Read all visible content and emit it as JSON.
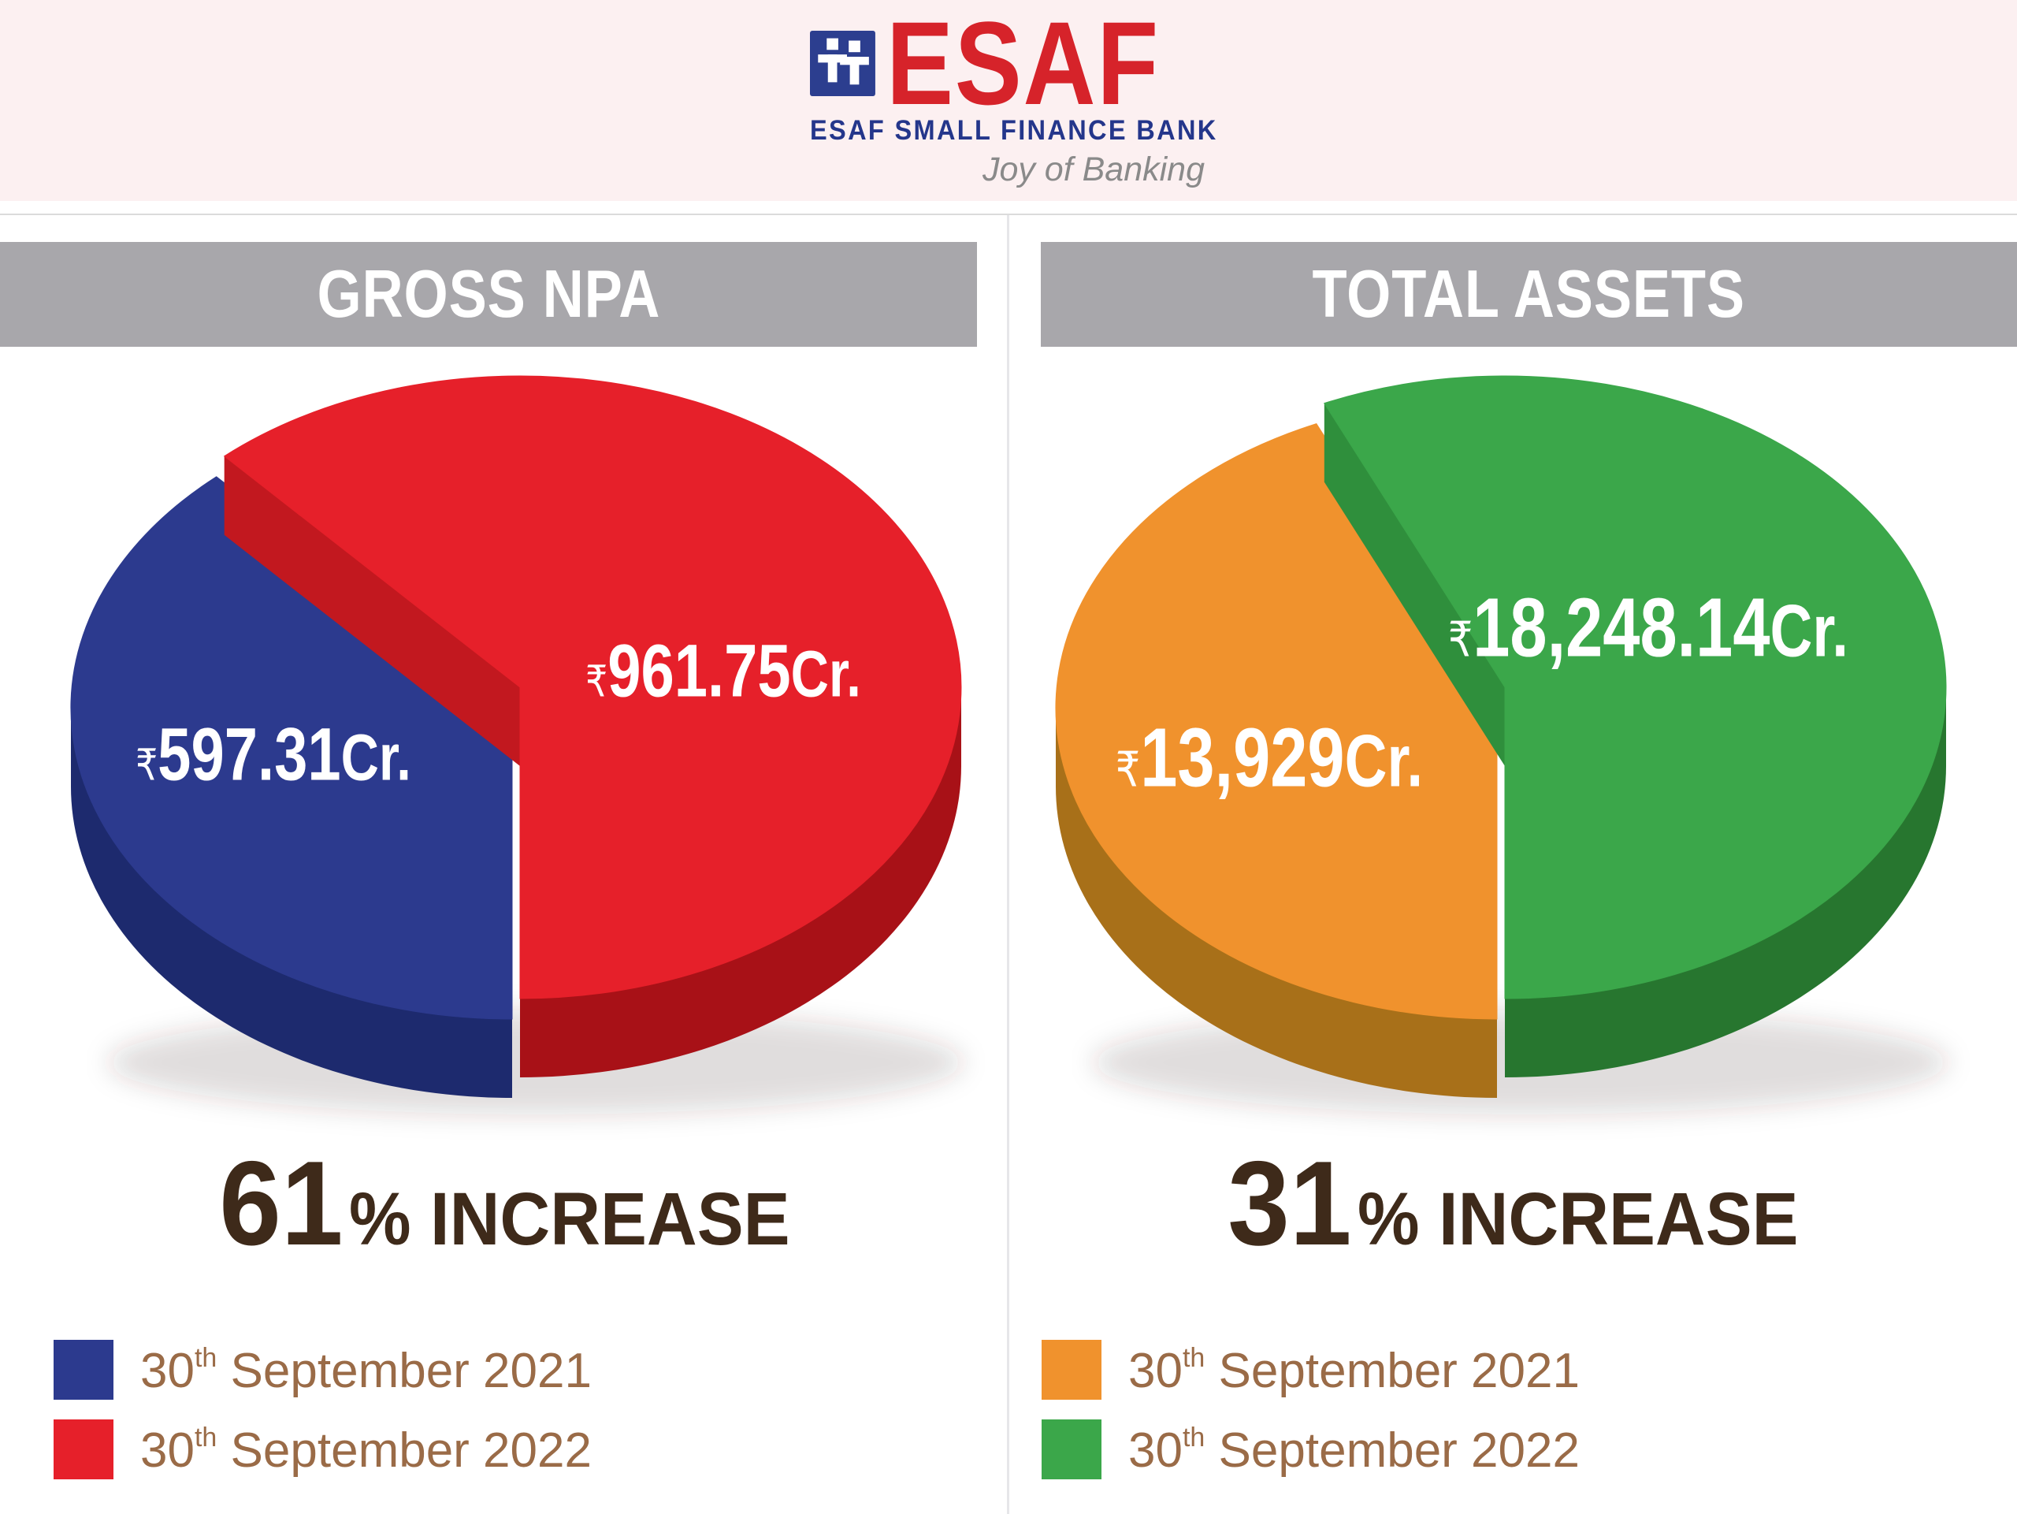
{
  "header": {
    "bg_color": "#fcf0f1",
    "logo": {
      "brand": "ESAF",
      "brand_color": "#d6232a",
      "icon_bg_color": "#2c3e8f",
      "bank_name": "ESAF SMALL FINANCE BANK",
      "bank_name_color": "#24368b",
      "tagline": "Joy of Banking",
      "tagline_color": "#8a8a8a"
    }
  },
  "layout_colors": {
    "title_bar_bg": "#a8a7ab",
    "title_bar_text": "#ffffff",
    "increase_text": "#3e2a1a",
    "legend_text": "#9a6b47",
    "divider": "#e6e6e9"
  },
  "chart_data": [
    {
      "type": "pie",
      "title": "GROSS NPA",
      "currency": "₹",
      "unit": "Cr.",
      "increase": {
        "value": "61",
        "suffix": "% INCREASE"
      },
      "slices": [
        {
          "legend_day": "30",
          "legend_ord": "th",
          "legend_rest": " September 2021",
          "value": 597.31,
          "display": "597.31",
          "pct_share": 38.3,
          "color": "#2c3a8e",
          "rim": "#1d2a6e",
          "cut": "#27337d"
        },
        {
          "legend_day": "30",
          "legend_ord": "th",
          "legend_rest": " September 2022",
          "value": 961.75,
          "display": "961.75",
          "pct_share": 61.7,
          "color": "#e6202a",
          "rim": "#a81117",
          "cut": "#c2181f"
        }
      ]
    },
    {
      "type": "pie",
      "title": "TOTAL ASSETS",
      "currency": "₹",
      "unit": "Cr.",
      "increase": {
        "value": "31",
        "suffix": "% INCREASE"
      },
      "slices": [
        {
          "legend_day": "30",
          "legend_ord": "th",
          "legend_rest": " September 2021",
          "value": 13929,
          "display": "13,929",
          "pct_share": 43.3,
          "color": "#f0922d",
          "rim": "#a87019",
          "cut": "#c77d20"
        },
        {
          "legend_day": "30",
          "legend_ord": "th",
          "legend_rest": " September 2022",
          "value": 18248.14,
          "display": "18,248.14",
          "pct_share": 56.7,
          "color": "#3ba74a",
          "rim": "#27762f",
          "cut": "#2f8f3c"
        }
      ]
    }
  ]
}
